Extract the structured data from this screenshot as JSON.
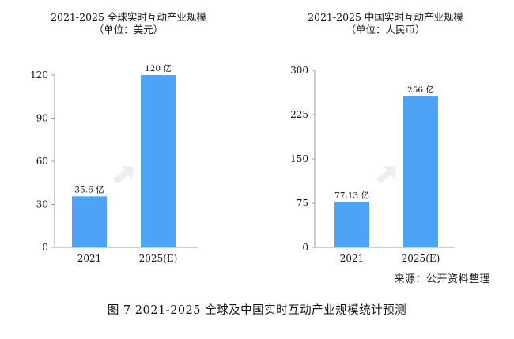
{
  "chart_data": [
    {
      "type": "bar",
      "title": "2021-2025 全球实时互动产业规模",
      "subtitle": "（单位：美元）",
      "categories": [
        "2021",
        "2025(E)"
      ],
      "values": [
        35.6,
        120
      ],
      "data_labels": [
        "35.6 亿",
        "120 亿"
      ],
      "yticks": [
        "0",
        "30",
        "60",
        "90",
        "120"
      ],
      "ylim": [
        0,
        120
      ],
      "bar_color": "#4da3f5",
      "arrow_color": "#eeeeee",
      "grid": false
    },
    {
      "type": "bar",
      "title": "2021-2025 中国实时互动产业规模",
      "subtitle": "（单位：人民币）",
      "categories": [
        "2021",
        "2025(E)"
      ],
      "values": [
        77.13,
        256
      ],
      "data_labels": [
        "77.13 亿",
        "256 亿"
      ],
      "yticks": [
        "0",
        "75",
        "150",
        "225",
        "300"
      ],
      "ylim": [
        0,
        300
      ],
      "bar_color": "#4da3f5",
      "arrow_color": "#eeeeee",
      "grid": false
    }
  ],
  "source": "来源：公开资料整理",
  "caption": "图 7   2021-2025 全球及中国实时互动产业规模统计预测"
}
